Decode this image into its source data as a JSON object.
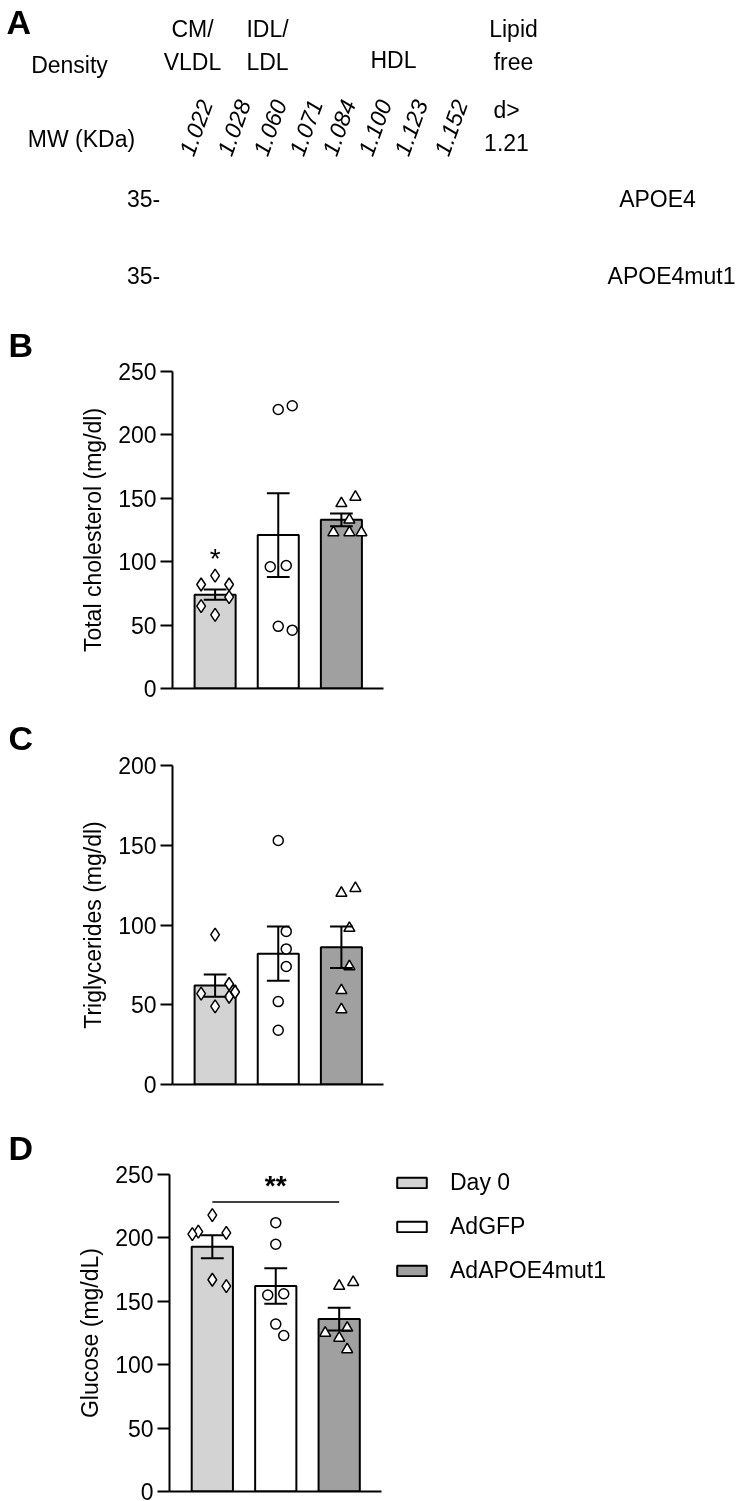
{
  "chart_data": [
    {
      "type": "other",
      "title": "A",
      "annotations": [
        "Density",
        "MW (KDa)",
        "CM/\nVLDL",
        "IDL/\nLDL",
        "HDL",
        "Lipid\nfree",
        "1.022",
        "1.028",
        "1.060",
        "1.071",
        "1.084",
        "1.100",
        "1.123",
        "1.152",
        "d>\n1.21",
        "35-",
        "APOE4",
        "35-",
        "APOE4mut1"
      ]
    },
    {
      "type": "bar",
      "title": "B",
      "ylabel": "Total cholesterol (mg/dl)",
      "categories": [
        null,
        null,
        null
      ],
      "stacked": true,
      "ylim": [
        0,
        250
      ],
      "yticks": [
        0,
        50,
        100,
        150,
        200,
        250
      ],
      "tick_labels": "y",
      "series": [
        {
          "type": "bar",
          "color": "#d3d3d3",
          "values": [
            74,
            null,
            null
          ],
          "errors": [
            4,
            null,
            null
          ],
          "value_labels": [
            "*",
            null,
            null
          ]
        },
        {
          "type": "bar",
          "color": "#ffffff",
          "values": [
            null,
            121,
            null
          ],
          "errors": [
            null,
            33,
            null
          ]
        },
        {
          "type": "bar",
          "color": "#a0a0a0",
          "values": [
            null,
            null,
            133
          ],
          "errors": [
            null,
            null,
            5
          ]
        },
        {
          "type": "scatter",
          "marker": "diamond",
          "color": "#ffffff",
          "values": [
            89,
            null,
            null
          ]
        },
        {
          "type": "scatter",
          "marker": "diamond",
          "color": "#ffffff",
          "values": [
            82,
            null,
            null
          ]
        },
        {
          "type": "scatter",
          "marker": "diamond",
          "color": "#ffffff",
          "values": [
            82,
            null,
            null
          ]
        },
        {
          "type": "scatter",
          "marker": "diamond",
          "color": "#ffffff",
          "values": [
            72,
            null,
            null
          ]
        },
        {
          "type": "scatter",
          "marker": "diamond",
          "color": "#ffffff",
          "values": [
            65,
            null,
            null
          ]
        },
        {
          "type": "scatter",
          "marker": "diamond",
          "color": "#ffffff",
          "values": [
            58,
            null,
            null
          ]
        },
        {
          "type": "scatter",
          "marker": "circle",
          "color": "#ffffff",
          "values": [
            null,
            220,
            null
          ]
        },
        {
          "type": "scatter",
          "marker": "circle",
          "color": "#ffffff",
          "values": [
            null,
            223,
            null
          ]
        },
        {
          "type": "scatter",
          "marker": "circle",
          "color": "#ffffff",
          "values": [
            null,
            97,
            null
          ]
        },
        {
          "type": "scatter",
          "marker": "circle",
          "color": "#ffffff",
          "values": [
            null,
            96,
            null
          ]
        },
        {
          "type": "scatter",
          "marker": "circle",
          "color": "#ffffff",
          "values": [
            null,
            49,
            null
          ]
        },
        {
          "type": "scatter",
          "marker": "circle",
          "color": "#ffffff",
          "values": [
            null,
            46,
            null
          ]
        },
        {
          "type": "scatter",
          "marker": "triangle",
          "color": "#ffffff",
          "values": [
            null,
            null,
            133
          ]
        },
        {
          "type": "scatter",
          "marker": "triangle",
          "color": "#ffffff",
          "values": [
            null,
            null,
            146
          ]
        },
        {
          "type": "scatter",
          "marker": "triangle",
          "color": "#ffffff",
          "values": [
            null,
            null,
            151
          ]
        },
        {
          "type": "scatter",
          "marker": "triangle",
          "color": "#ffffff",
          "values": [
            null,
            null,
            123
          ]
        },
        {
          "type": "scatter",
          "marker": "triangle",
          "color": "#ffffff",
          "values": [
            null,
            null,
            123
          ]
        },
        {
          "type": "scatter",
          "marker": "triangle",
          "color": "#ffffff",
          "values": [
            null,
            null,
            123
          ]
        }
      ]
    },
    {
      "type": "bar",
      "title": "C",
      "ylabel": "Triglycerides (mg/dl)",
      "categories": [
        null,
        null,
        null
      ],
      "stacked": true,
      "ylim": [
        0,
        200
      ],
      "yticks": [
        0,
        50,
        100,
        150,
        200
      ],
      "tick_labels": "y",
      "series": [
        {
          "type": "bar",
          "color": "#d3d3d3",
          "values": [
            62,
            null,
            null
          ],
          "errors": [
            7,
            null,
            null
          ]
        },
        {
          "type": "bar",
          "color": "#ffffff",
          "values": [
            null,
            82,
            null
          ],
          "errors": [
            null,
            17,
            null
          ]
        },
        {
          "type": "bar",
          "color": "#a0a0a0",
          "values": [
            null,
            null,
            86
          ],
          "errors": [
            null,
            null,
            13
          ]
        },
        {
          "type": "scatter",
          "marker": "diamond",
          "color": "#ffffff",
          "values": [
            94,
            null,
            null
          ]
        },
        {
          "type": "scatter",
          "marker": "diamond",
          "color": "#ffffff",
          "values": [
            63,
            null,
            null
          ]
        },
        {
          "type": "scatter",
          "marker": "diamond",
          "color": "#ffffff",
          "values": [
            57,
            null,
            null
          ]
        },
        {
          "type": "scatter",
          "marker": "diamond",
          "color": "#ffffff",
          "values": [
            58,
            null,
            null
          ]
        },
        {
          "type": "scatter",
          "marker": "diamond",
          "color": "#ffffff",
          "values": [
            55,
            null,
            null
          ]
        },
        {
          "type": "scatter",
          "marker": "diamond",
          "color": "#ffffff",
          "values": [
            49,
            null,
            null
          ]
        },
        {
          "type": "scatter",
          "marker": "circle",
          "color": "#ffffff",
          "values": [
            null,
            153,
            null
          ]
        },
        {
          "type": "scatter",
          "marker": "circle",
          "color": "#ffffff",
          "values": [
            null,
            96,
            null
          ]
        },
        {
          "type": "scatter",
          "marker": "circle",
          "color": "#ffffff",
          "values": [
            null,
            85,
            null
          ]
        },
        {
          "type": "scatter",
          "marker": "circle",
          "color": "#ffffff",
          "values": [
            null,
            74,
            null
          ]
        },
        {
          "type": "scatter",
          "marker": "circle",
          "color": "#ffffff",
          "values": [
            null,
            52,
            null
          ]
        },
        {
          "type": "scatter",
          "marker": "circle",
          "color": "#ffffff",
          "values": [
            null,
            34,
            null
          ]
        },
        {
          "type": "scatter",
          "marker": "triangle",
          "color": "#ffffff",
          "values": [
            null,
            null,
            120
          ]
        },
        {
          "type": "scatter",
          "marker": "triangle",
          "color": "#ffffff",
          "values": [
            null,
            null,
            123
          ]
        },
        {
          "type": "scatter",
          "marker": "triangle",
          "color": "#ffffff",
          "values": [
            null,
            null,
            98
          ]
        },
        {
          "type": "scatter",
          "marker": "triangle",
          "color": "#ffffff",
          "values": [
            null,
            null,
            74
          ]
        },
        {
          "type": "scatter",
          "marker": "triangle",
          "color": "#ffffff",
          "values": [
            null,
            null,
            59
          ]
        },
        {
          "type": "scatter",
          "marker": "triangle",
          "color": "#ffffff",
          "values": [
            null,
            null,
            47
          ]
        }
      ]
    },
    {
      "type": "bar",
      "title": "D",
      "ylabel": "Glucose (mg/dL)",
      "categories": [
        null,
        null,
        null
      ],
      "stacked": true,
      "ylim": [
        0,
        250
      ],
      "yticks": [
        0,
        50,
        100,
        150,
        200,
        250
      ],
      "tick_labels": "y",
      "legend": "right",
      "annotations": [
        "**"
      ],
      "series": [
        {
          "type": "bar",
          "name": "Day 0",
          "color": "#d3d3d3",
          "values": [
            193,
            null,
            null
          ],
          "errors": [
            9,
            null,
            null
          ]
        },
        {
          "type": "bar",
          "name": "AdGFP",
          "color": "#ffffff",
          "values": [
            null,
            162,
            null
          ],
          "errors": [
            null,
            14,
            null
          ]
        },
        {
          "type": "bar",
          "name": "AdAPOE4mut1",
          "color": "#a0a0a0",
          "values": [
            null,
            null,
            136
          ],
          "errors": [
            null,
            null,
            9
          ]
        },
        {
          "type": "scatter",
          "marker": "diamond",
          "color": "#ffffff",
          "values": [
            218,
            null,
            null
          ]
        },
        {
          "type": "scatter",
          "marker": "diamond",
          "color": "#ffffff",
          "values": [
            204,
            null,
            null
          ]
        },
        {
          "type": "scatter",
          "marker": "diamond",
          "color": "#ffffff",
          "values": [
            205,
            null,
            null
          ]
        },
        {
          "type": "scatter",
          "marker": "diamond",
          "color": "#ffffff",
          "values": [
            203,
            null,
            null
          ]
        },
        {
          "type": "scatter",
          "marker": "diamond",
          "color": "#ffffff",
          "values": [
            167,
            null,
            null
          ]
        },
        {
          "type": "scatter",
          "marker": "diamond",
          "color": "#ffffff",
          "values": [
            162,
            null,
            null
          ]
        },
        {
          "type": "scatter",
          "marker": "circle",
          "color": "#ffffff",
          "values": [
            null,
            212,
            null
          ]
        },
        {
          "type": "scatter",
          "marker": "circle",
          "color": "#ffffff",
          "values": [
            null,
            195,
            null
          ]
        },
        {
          "type": "scatter",
          "marker": "circle",
          "color": "#ffffff",
          "values": [
            null,
            156,
            null
          ]
        },
        {
          "type": "scatter",
          "marker": "circle",
          "color": "#ffffff",
          "values": [
            null,
            155,
            null
          ]
        },
        {
          "type": "scatter",
          "marker": "circle",
          "color": "#ffffff",
          "values": [
            null,
            132,
            null
          ]
        },
        {
          "type": "scatter",
          "marker": "circle",
          "color": "#ffffff",
          "values": [
            null,
            123,
            null
          ]
        },
        {
          "type": "scatter",
          "marker": "triangle",
          "color": "#ffffff",
          "values": [
            null,
            null,
            162
          ]
        },
        {
          "type": "scatter",
          "marker": "triangle",
          "color": "#ffffff",
          "values": [
            null,
            null,
            165
          ]
        },
        {
          "type": "scatter",
          "marker": "triangle",
          "color": "#ffffff",
          "values": [
            null,
            null,
            129
          ]
        },
        {
          "type": "scatter",
          "marker": "triangle",
          "color": "#ffffff",
          "values": [
            null,
            null,
            121
          ]
        },
        {
          "type": "scatter",
          "marker": "triangle",
          "color": "#ffffff",
          "values": [
            null,
            null,
            125
          ]
        },
        {
          "type": "scatter",
          "marker": "triangle",
          "color": "#ffffff",
          "values": [
            null,
            null,
            112
          ]
        }
      ]
    }
  ]
}
